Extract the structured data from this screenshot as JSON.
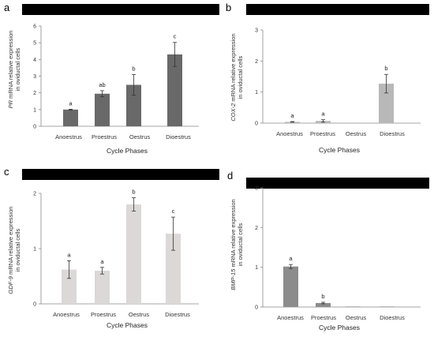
{
  "chart_data": [
    {
      "type": "bar",
      "panel": "a",
      "categories": [
        "Anoestrus",
        "Proestrus",
        "Oestrus",
        "Dioestrus"
      ],
      "values": [
        1.0,
        1.95,
        2.48,
        4.3
      ],
      "errors": [
        0.02,
        0.18,
        0.62,
        0.72
      ],
      "significance": [
        "a",
        "ab",
        "b",
        "c"
      ],
      "ylabel_gene": "PR",
      "ylabel_rest": " mRNA relative expression",
      "ylabel_line2": "in oviductal cells",
      "xlabel": "Cycle Phases",
      "ylim": [
        0,
        6
      ],
      "yticks": [
        "0",
        "1",
        "2",
        "3",
        "4",
        "5",
        "6"
      ],
      "bar_color": "#696969"
    },
    {
      "type": "bar",
      "panel": "b",
      "categories": [
        "Anoestrus",
        "Proestrus",
        "Oestrus",
        "Dioestrus"
      ],
      "values": [
        0.04,
        0.07,
        0.0,
        1.27
      ],
      "errors": [
        0.01,
        0.04,
        0.0,
        0.3
      ],
      "significance": [
        "a",
        "a",
        "",
        "b"
      ],
      "ylabel_gene": "COX-2",
      "ylabel_rest": " mRNA relative expression",
      "ylabel_line2": "in oviductal cells",
      "xlabel": "Cycle Phases",
      "ylim": [
        0,
        3
      ],
      "yticks": [
        "0",
        "1",
        "2",
        "3"
      ],
      "bar_color": "#b8b8b8"
    },
    {
      "type": "bar",
      "panel": "c",
      "categories": [
        "Anoestrus",
        "Proestrus",
        "Oestrus",
        "Dioestrus"
      ],
      "values": [
        0.62,
        0.6,
        1.8,
        1.27
      ],
      "errors": [
        0.16,
        0.06,
        0.12,
        0.3
      ],
      "significance": [
        "a",
        "a",
        "b",
        "c"
      ],
      "ylabel_gene": "GDF-9",
      "ylabel_rest": " mRNA relative expression",
      "ylabel_line2": "in oviductal cells",
      "xlabel": "Cycle Phases",
      "ylim": [
        0,
        2
      ],
      "yticks": [
        "0",
        "1",
        "2"
      ],
      "bar_color": "#dcd8d8"
    },
    {
      "type": "bar",
      "panel": "d",
      "categories": [
        "Anoestrus",
        "Proestrus",
        "Oestrus",
        "Dioestrus"
      ],
      "values": [
        1.02,
        0.1,
        0.01,
        0.01
      ],
      "errors": [
        0.05,
        0.02,
        0.0,
        0.0
      ],
      "significance": [
        "a",
        "b",
        "",
        ""
      ],
      "ylabel_gene": "BMP-15",
      "ylabel_rest": " mRNA relative expression",
      "ylabel_line2": "in oviductal cells",
      "xlabel": "Cycle Phases",
      "ylim": [
        0,
        3
      ],
      "yticks": [
        "0",
        "1",
        "2",
        "3"
      ],
      "bar_color": "#8c8c8c"
    }
  ]
}
